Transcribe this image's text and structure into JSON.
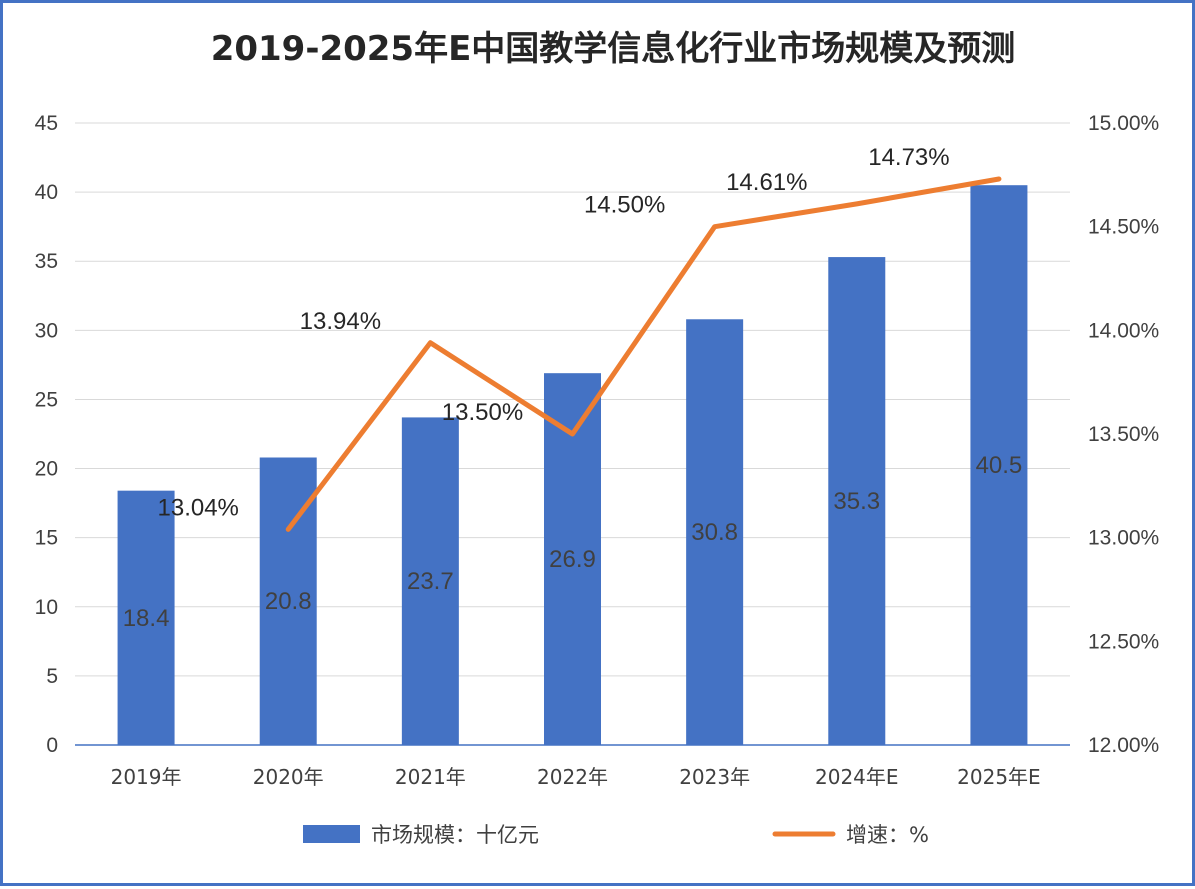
{
  "chart_data": {
    "type": "bar",
    "title": "2019-2025年E中国教学信息化行业市场规模及预测",
    "categories": [
      "2019年",
      "2020年",
      "2021年",
      "2022年",
      "2023年",
      "2024年E",
      "2025年E"
    ],
    "series": [
      {
        "name": "市场规模：十亿元",
        "type": "bar",
        "axis": "left",
        "color": "#4472C4",
        "values": [
          18.4,
          20.8,
          23.7,
          26.9,
          30.8,
          35.3,
          40.5
        ],
        "labels": [
          "18.4",
          "20.8",
          "23.7",
          "26.9",
          "30.8",
          "35.3",
          "40.5"
        ]
      },
      {
        "name": "增速：%",
        "type": "line",
        "axis": "right",
        "color": "#ED7D31",
        "x": [
          "2020年",
          "2021年",
          "2022年",
          "2023年",
          "2024年E",
          "2025年E"
        ],
        "values": [
          13.04,
          13.94,
          13.5,
          14.5,
          14.61,
          14.73
        ],
        "labels": [
          "13.04%",
          "13.94%",
          "13.50%",
          "14.50%",
          "14.61%",
          "14.73%"
        ]
      }
    ],
    "y_left": {
      "lim": [
        0,
        45
      ],
      "ticks": [
        "0",
        "5",
        "10",
        "15",
        "20",
        "25",
        "30",
        "35",
        "40",
        "45"
      ]
    },
    "y_right": {
      "lim": [
        12.0,
        15.0
      ],
      "ticks": [
        "12.00%",
        "12.50%",
        "13.00%",
        "13.50%",
        "14.00%",
        "14.50%",
        "15.00%"
      ]
    },
    "grid": true,
    "legend": "bottom"
  }
}
